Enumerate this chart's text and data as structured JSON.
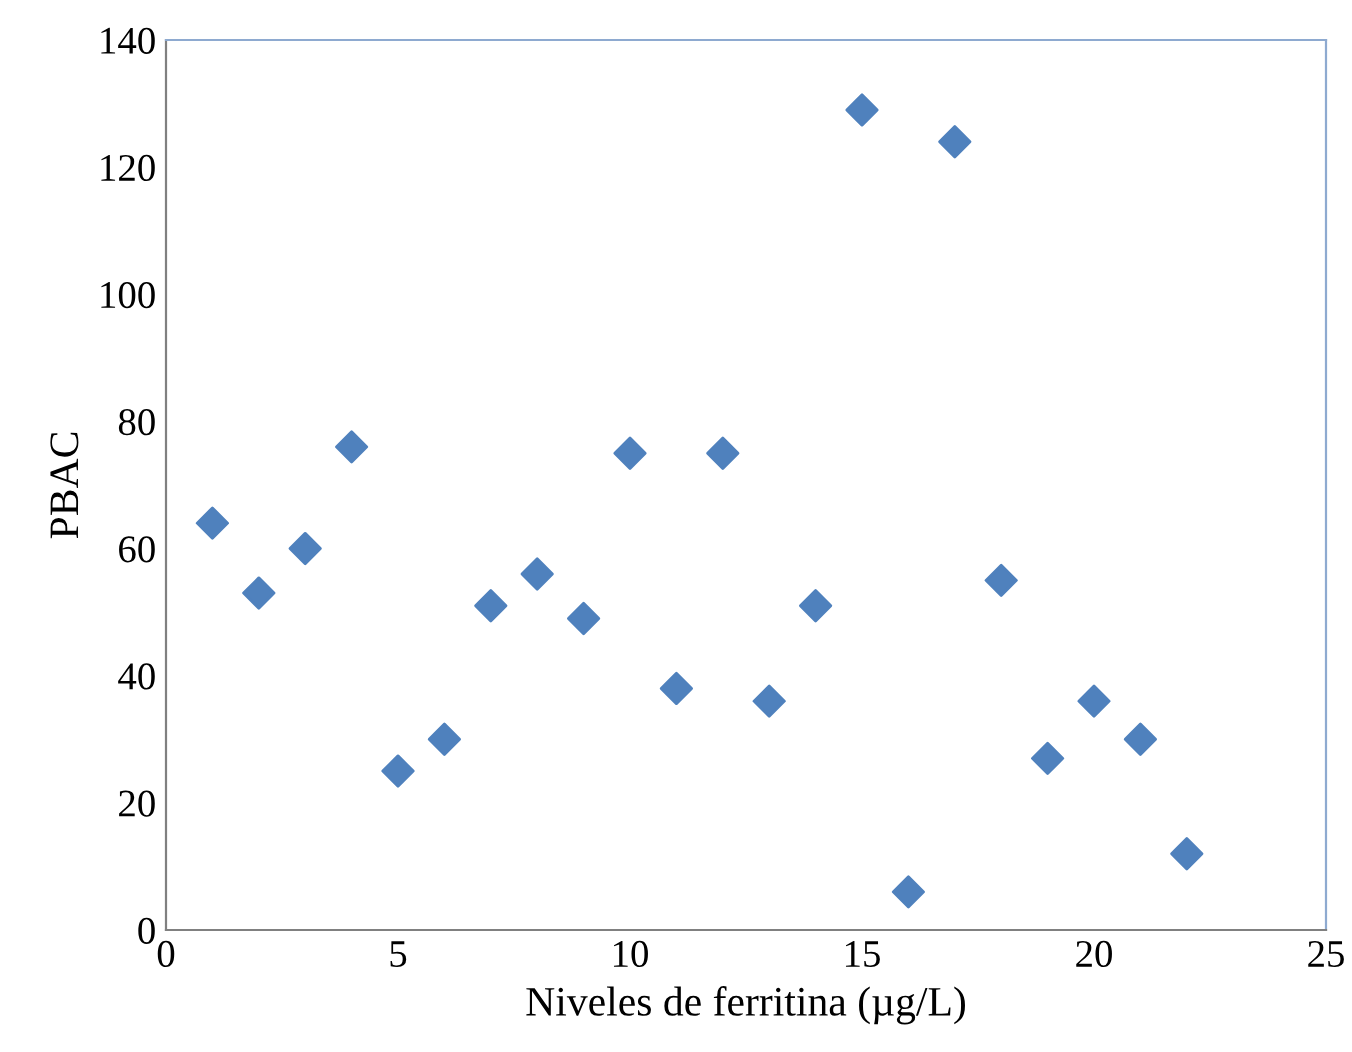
{
  "chart_data": {
    "type": "scatter",
    "xlabel": "Niveles de ferritina (µg/L)",
    "ylabel": "PBAC",
    "x": [
      1,
      2,
      3,
      4,
      5,
      6,
      7,
      8,
      9,
      10,
      11,
      12,
      13,
      14,
      15,
      16,
      17,
      18,
      19,
      20,
      21,
      22
    ],
    "values": [
      64,
      53,
      60,
      76,
      25,
      30,
      51,
      56,
      49,
      75,
      38,
      75,
      36,
      51,
      129,
      6,
      124,
      55,
      27,
      36,
      30,
      12
    ],
    "color": "#4f81bd",
    "marker": "diamond",
    "xlim": [
      0,
      25
    ],
    "xticks": [
      0,
      5,
      10,
      15,
      20,
      25
    ],
    "ylim": [
      0,
      140
    ],
    "yticks": [
      0,
      20,
      40,
      60,
      80,
      100,
      120,
      140
    ],
    "grid": false,
    "legend": false
  }
}
